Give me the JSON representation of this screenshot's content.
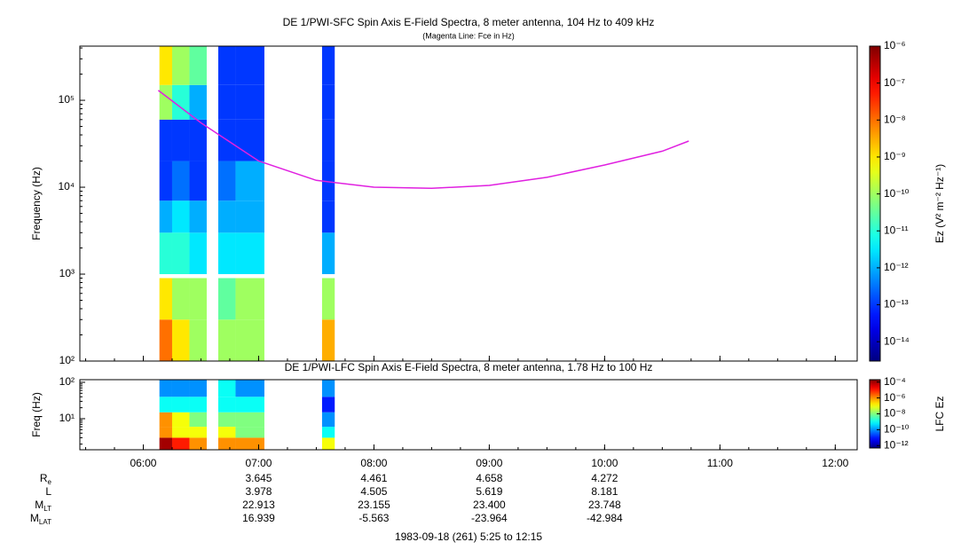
{
  "chart_data": [
    {
      "type": "heatmap",
      "title": "DE 1/PWI-SFC  Spin Axis E-Field Spectra, 8 meter antenna, 104 Hz to 409 kHz",
      "subtitle": "(Magenta Line: Fce in Hz)",
      "y_label": "Frequency (Hz)",
      "colorbar_label": "Ez (V² m⁻² Hz⁻¹)",
      "colormap": "jet",
      "y_scale": "log",
      "xlim": [
        5.45,
        12.19
      ],
      "xticks": [
        6,
        7,
        8,
        9,
        10,
        11,
        12
      ],
      "ylim": [
        100,
        420000
      ],
      "yticks": [
        {
          "value": 100,
          "label": "10²"
        },
        {
          "value": 1000,
          "label": "10³"
        },
        {
          "value": 10000,
          "label": "10⁴"
        },
        {
          "value": 100000,
          "label": "10⁵"
        }
      ],
      "clim": [
        3e-15,
        1e-06
      ],
      "cticks": [
        {
          "value": 1e-06,
          "label": "10⁻⁶"
        },
        {
          "value": 1e-07,
          "label": "10⁻⁷"
        },
        {
          "value": 1e-08,
          "label": "10⁻⁸"
        },
        {
          "value": 1e-09,
          "label": "10⁻⁹"
        },
        {
          "value": 1e-10,
          "label": "10⁻¹⁰"
        },
        {
          "value": 1e-11,
          "label": "10⁻¹¹"
        },
        {
          "value": 1e-12,
          "label": "10⁻¹²"
        },
        {
          "value": 1e-13,
          "label": "10⁻¹³"
        },
        {
          "value": 1e-14,
          "label": "10⁻¹⁴"
        }
      ],
      "time_edges": [
        6.14,
        6.25,
        6.4,
        6.55,
        6.65,
        6.8,
        7.05,
        7.55,
        7.66
      ],
      "freq_edges": [
        100,
        300,
        900,
        1000,
        3000,
        7000,
        20000,
        60000,
        150000,
        420000
      ],
      "values": [
        [
          1e-08,
          1e-09,
          null,
          1e-11,
          1e-12,
          1e-13,
          1e-13,
          1e-10,
          1e-09
        ],
        [
          1e-09,
          1e-10,
          null,
          1e-11,
          3e-12,
          3e-13,
          1e-13,
          1e-11,
          1e-10
        ],
        [
          1e-10,
          1e-10,
          null,
          3e-12,
          1e-12,
          1e-13,
          1e-13,
          1e-12,
          3e-11
        ],
        [
          null,
          null,
          null,
          null,
          null,
          null,
          null,
          null,
          null
        ],
        [
          1e-10,
          3e-11,
          null,
          3e-12,
          1e-12,
          3e-13,
          1e-13,
          1e-13,
          1e-13
        ],
        [
          1e-10,
          1e-10,
          null,
          3e-12,
          1e-12,
          1e-12,
          1e-13,
          1e-13,
          1e-13
        ],
        [
          null,
          null,
          null,
          null,
          null,
          null,
          null,
          null,
          null
        ],
        [
          3e-09,
          1e-10,
          null,
          1e-12,
          1e-13,
          1e-13,
          1e-13,
          1e-13,
          1e-13
        ]
      ],
      "series": [
        {
          "color": "#e020e0",
          "x": [
            6.13,
            6.5,
            7.0,
            7.5,
            8.0,
            8.5,
            9.0,
            9.5,
            10.0,
            10.5,
            10.73
          ],
          "values": [
            130000,
            55000,
            20000,
            12000,
            10000,
            9700,
            10500,
            13000,
            18000,
            26000,
            34000
          ]
        }
      ]
    },
    {
      "type": "heatmap",
      "title": "DE 1/PWI-LFC  Spin Axis E-Field Spectra, 8 meter antenna, 1.78 Hz to 100 Hz",
      "y_label": "Freq (Hz)",
      "colorbar_label": "LFC Ez",
      "colormap": "jet",
      "y_scale": "log",
      "xlim": [
        5.45,
        12.19
      ],
      "xticks": [
        {
          "value": 6,
          "label": "06:00"
        },
        {
          "value": 7,
          "label": "07:00"
        },
        {
          "value": 8,
          "label": "08:00"
        },
        {
          "value": 9,
          "label": "09:00"
        },
        {
          "value": 10,
          "label": "10:00"
        },
        {
          "value": 11,
          "label": "11:00"
        },
        {
          "value": 12,
          "label": "12:00"
        }
      ],
      "ylim": [
        1.4,
        118
      ],
      "yticks": [
        {
          "value": 10,
          "label": "10¹"
        },
        {
          "value": 100,
          "label": "10²"
        }
      ],
      "clim": [
        5e-13,
        0.0002
      ],
      "cticks": [
        {
          "value": 0.0001,
          "label": "10⁻⁴"
        },
        {
          "value": 1e-06,
          "label": "10⁻⁶"
        },
        {
          "value": 1e-08,
          "label": "10⁻⁸"
        },
        {
          "value": 1e-10,
          "label": "10⁻¹⁰"
        },
        {
          "value": 1e-12,
          "label": "10⁻¹²"
        }
      ],
      "time_edges": [
        6.14,
        6.25,
        6.4,
        6.55,
        6.65,
        6.8,
        7.05,
        7.55,
        7.66
      ],
      "freq_edges": [
        1.4,
        3,
        6,
        15,
        40,
        118
      ],
      "values": [
        [
          0.0001,
          1e-06,
          1e-06,
          1e-09,
          1e-10
        ],
        [
          1e-05,
          1e-07,
          1e-07,
          1e-09,
          1e-10
        ],
        [
          1e-06,
          1e-07,
          1e-08,
          1e-09,
          1e-10
        ],
        [
          null,
          null,
          null,
          null,
          null
        ],
        [
          1e-06,
          1e-07,
          1e-08,
          1e-09,
          1e-09
        ],
        [
          1e-06,
          1e-08,
          1e-08,
          1e-09,
          1e-10
        ],
        [
          null,
          null,
          null,
          null,
          null
        ],
        [
          1e-07,
          1e-09,
          1e-10,
          1e-11,
          1e-10
        ]
      ]
    }
  ],
  "ephemeris": {
    "x": [
      7,
      8,
      9,
      10
    ],
    "rows": [
      {
        "name": "R",
        "sub": "e",
        "values": [
          "3.645",
          "4.461",
          "4.658",
          "4.272"
        ]
      },
      {
        "name": "L",
        "values": [
          "3.978",
          "4.505",
          "5.619",
          "8.181"
        ]
      },
      {
        "name": "M",
        "sub": "LT",
        "values": [
          "22.913",
          "23.155",
          "23.400",
          "23.748"
        ]
      },
      {
        "name": "M",
        "sub": "LAT",
        "values": [
          "16.939",
          "-5.563",
          "-23.964",
          "-42.984"
        ]
      }
    ]
  },
  "footer": "1983-09-18 (261) 5:25 to 12:15"
}
